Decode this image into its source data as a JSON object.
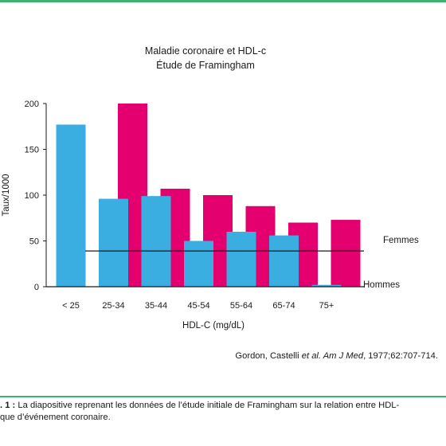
{
  "chart_data": {
    "type": "bar",
    "title": "Maladie coronaire et HDL-c",
    "subtitle": "Étude de Framingham",
    "xlabel": "HDL-C (mg/dL)",
    "ylabel": "Taux/1000",
    "categories": [
      "< 25",
      "25-34",
      "35-44",
      "45-54",
      "55-64",
      "65-74",
      "75+"
    ],
    "series": [
      {
        "name": "Hommes",
        "color": "#3aaee0",
        "values": [
          177,
          96,
          99,
          50,
          60,
          56,
          2
        ]
      },
      {
        "name": "Femmes",
        "color": "#e5006f",
        "values": [
          null,
          200,
          107,
          100,
          88,
          70,
          73
        ]
      }
    ],
    "yticks": [
      0,
      50,
      100,
      150,
      200
    ],
    "ylim": [
      0,
      200
    ],
    "grid": false,
    "legend": "right",
    "reference_line_value": 39
  },
  "citation": {
    "authors": "Gordon, Castelli ",
    "etal": "et al. Am J Med",
    "rest": ", 1977;62:707-714."
  },
  "caption": {
    "label": ". 1 :",
    "line1": " La diapositive reprenant les données de l’étude initiale de Framingham sur la relation entre HDL-",
    "line2": "que d’événement coronaire."
  }
}
